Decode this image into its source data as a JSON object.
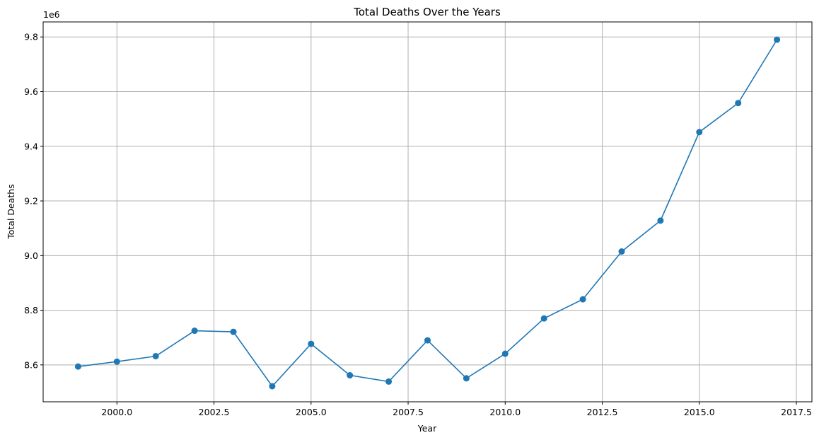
{
  "chart_data": {
    "type": "line",
    "title": "Total Deaths Over the Years",
    "xlabel": "Year",
    "ylabel": "Total Deaths",
    "y_offset_label": "1e6",
    "xlim": [
      1998.1,
      2017.9
    ],
    "ylim": [
      8.465,
      9.855
    ],
    "x_ticks": [
      2000.0,
      2002.5,
      2005.0,
      2007.5,
      2010.0,
      2012.5,
      2015.0,
      2017.5
    ],
    "x_tick_labels": [
      "2000.0",
      "2002.5",
      "2005.0",
      "2007.5",
      "2010.0",
      "2012.5",
      "2015.0",
      "2017.5"
    ],
    "y_ticks": [
      8.6,
      8.8,
      9.0,
      9.2,
      9.4,
      9.6,
      9.8
    ],
    "y_tick_labels": [
      "8.6",
      "8.8",
      "9.0",
      "9.2",
      "9.4",
      "9.6",
      "9.8"
    ],
    "grid": true,
    "line_color": "#1f77b4",
    "marker": "circle",
    "series": [
      {
        "x": [
          1999,
          2000,
          2001,
          2002,
          2003,
          2004,
          2005,
          2006,
          2007,
          2008,
          2009,
          2010,
          2011,
          2012,
          2013,
          2014,
          2015,
          2016,
          2017
        ],
        "y": [
          8.594,
          8.612,
          8.632,
          8.725,
          8.721,
          8.522,
          8.677,
          8.562,
          8.539,
          8.69,
          8.551,
          8.641,
          8.77,
          8.84,
          9.015,
          9.128,
          9.452,
          9.558,
          9.79
        ]
      }
    ]
  }
}
